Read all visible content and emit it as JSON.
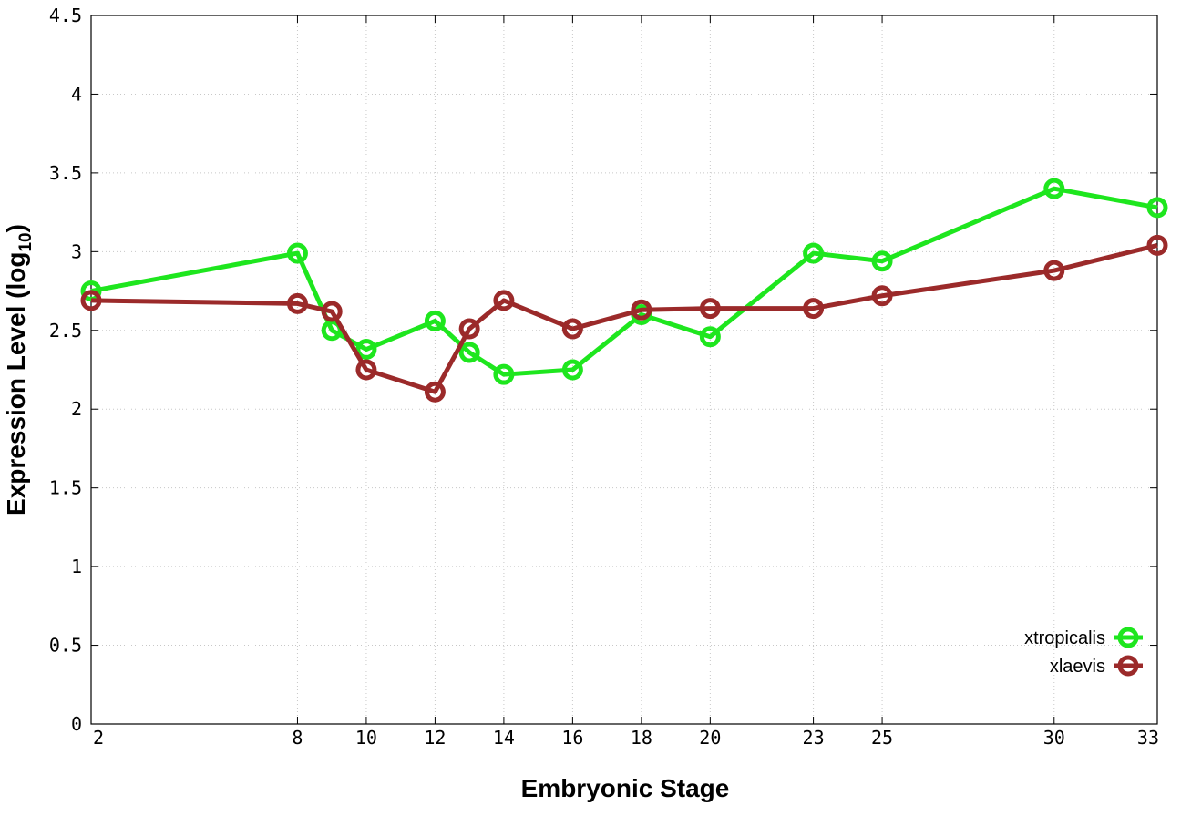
{
  "chart_data": {
    "type": "line",
    "xlabel": "Embryonic Stage",
    "ylabel_main": "Expression Level (log",
    "ylabel_sub": "10",
    "ylabel_end": ")",
    "xlim": [
      2,
      33
    ],
    "ylim": [
      0,
      4.5
    ],
    "x_ticks": [
      2,
      8,
      10,
      12,
      14,
      16,
      18,
      20,
      23,
      25,
      30,
      33
    ],
    "y_ticks": [
      0,
      0.5,
      1,
      1.5,
      2,
      2.5,
      3,
      3.5,
      4,
      4.5
    ],
    "y_tick_labels": [
      "0",
      "0.5",
      "1",
      "1.5",
      "2",
      "2.5",
      "3",
      "3.5",
      "4",
      "4.5"
    ],
    "grid": true,
    "legend_position": "bottom-right",
    "series": [
      {
        "name": "xtropicalis",
        "color": "#1ee61e",
        "x": [
          2,
          8,
          9,
          10,
          12,
          13,
          14,
          16,
          18,
          20,
          23,
          25,
          30,
          33
        ],
        "y": [
          2.75,
          2.99,
          2.5,
          2.38,
          2.56,
          2.36,
          2.22,
          2.25,
          2.6,
          2.46,
          2.99,
          2.94,
          3.4,
          3.28
        ]
      },
      {
        "name": "xlaevis",
        "color": "#9b2a2a",
        "x": [
          2,
          8,
          9,
          10,
          12,
          13,
          14,
          16,
          18,
          20,
          23,
          25,
          30,
          33
        ],
        "y": [
          2.69,
          2.67,
          2.62,
          2.25,
          2.11,
          2.51,
          2.69,
          2.51,
          2.63,
          2.64,
          2.64,
          2.72,
          2.88,
          3.04
        ]
      }
    ]
  }
}
